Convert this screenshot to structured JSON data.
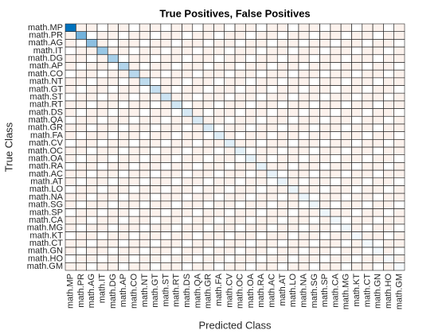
{
  "chart_data": {
    "type": "confusion",
    "title": "True Positives, False Positives",
    "xlabel": "Predicted Class",
    "ylabel": "True Class",
    "categories": [
      "math.MP",
      "math.PR",
      "math.AG",
      "math.IT",
      "math.DG",
      "math.AP",
      "math.CO",
      "math.NT",
      "math.GT",
      "math.ST",
      "math.RT",
      "math.DS",
      "math.QA",
      "math.GR",
      "math.FA",
      "math.CV",
      "math.OC",
      "math.OA",
      "math.RA",
      "math.AC",
      "math.AT",
      "math.LO",
      "math.NA",
      "math.SG",
      "math.SP",
      "math.CA",
      "math.MG",
      "math.KT",
      "math.CT",
      "math.GN",
      "math.HO",
      "math.GM"
    ],
    "diagonal_color": "#0072bd",
    "off_diagonal_color": "#d95319",
    "matrix": [
      [
        100,
        1,
        1,
        0,
        1,
        1,
        0,
        1,
        1,
        0,
        1,
        1,
        0,
        1,
        1,
        0,
        1,
        1,
        0,
        1,
        1,
        0,
        1,
        1,
        0,
        1,
        1,
        0,
        1,
        1,
        0,
        1
      ],
      [
        1,
        55,
        0,
        1,
        1,
        0,
        1,
        1,
        0,
        1,
        1,
        0,
        1,
        1,
        0,
        1,
        1,
        0,
        1,
        1,
        0,
        1,
        1,
        0,
        1,
        1,
        0,
        1,
        1,
        0,
        1,
        1
      ],
      [
        1,
        0,
        45,
        1,
        0,
        1,
        1,
        0,
        1,
        1,
        0,
        1,
        1,
        0,
        1,
        1,
        0,
        1,
        1,
        0,
        1,
        1,
        0,
        1,
        1,
        0,
        1,
        1,
        0,
        1,
        1,
        0
      ],
      [
        0,
        1,
        1,
        40,
        1,
        1,
        0,
        1,
        1,
        0,
        1,
        1,
        0,
        1,
        1,
        0,
        1,
        1,
        0,
        1,
        1,
        0,
        1,
        1,
        0,
        1,
        1,
        0,
        1,
        1,
        0,
        1
      ],
      [
        1,
        1,
        0,
        1,
        35,
        0,
        1,
        1,
        0,
        1,
        1,
        0,
        1,
        1,
        0,
        1,
        1,
        0,
        1,
        1,
        0,
        1,
        1,
        0,
        1,
        1,
        0,
        1,
        1,
        0,
        1,
        1
      ],
      [
        1,
        0,
        1,
        1,
        0,
        30,
        1,
        0,
        1,
        1,
        0,
        1,
        1,
        0,
        1,
        1,
        0,
        1,
        1,
        0,
        1,
        1,
        0,
        1,
        1,
        0,
        1,
        1,
        0,
        1,
        1,
        0
      ],
      [
        0,
        1,
        1,
        0,
        1,
        1,
        28,
        1,
        1,
        0,
        1,
        1,
        0,
        1,
        1,
        0,
        1,
        1,
        0,
        1,
        1,
        0,
        1,
        1,
        0,
        1,
        1,
        0,
        1,
        1,
        0,
        1
      ],
      [
        1,
        1,
        0,
        1,
        1,
        0,
        1,
        25,
        0,
        1,
        1,
        0,
        1,
        1,
        0,
        1,
        1,
        0,
        1,
        1,
        0,
        1,
        1,
        0,
        1,
        1,
        0,
        1,
        1,
        0,
        1,
        1
      ],
      [
        1,
        0,
        1,
        1,
        0,
        1,
        1,
        0,
        22,
        1,
        0,
        1,
        1,
        0,
        1,
        1,
        0,
        1,
        1,
        0,
        1,
        1,
        0,
        1,
        1,
        0,
        1,
        1,
        0,
        1,
        1,
        0
      ],
      [
        0,
        1,
        1,
        0,
        1,
        1,
        0,
        1,
        1,
        20,
        1,
        1,
        0,
        1,
        1,
        0,
        1,
        1,
        0,
        1,
        1,
        0,
        1,
        1,
        0,
        1,
        1,
        0,
        1,
        1,
        0,
        1
      ],
      [
        1,
        1,
        0,
        1,
        1,
        0,
        1,
        1,
        0,
        1,
        18,
        0,
        1,
        1,
        0,
        1,
        1,
        0,
        1,
        1,
        0,
        1,
        1,
        0,
        1,
        1,
        0,
        1,
        1,
        0,
        1,
        1
      ],
      [
        1,
        0,
        1,
        1,
        0,
        1,
        1,
        0,
        1,
        1,
        0,
        16,
        1,
        0,
        1,
        1,
        0,
        1,
        1,
        0,
        1,
        1,
        0,
        1,
        1,
        0,
        1,
        1,
        0,
        1,
        1,
        0
      ],
      [
        0,
        1,
        1,
        0,
        1,
        1,
        0,
        1,
        1,
        0,
        1,
        1,
        15,
        1,
        1,
        0,
        1,
        1,
        0,
        1,
        1,
        0,
        1,
        1,
        0,
        1,
        1,
        0,
        1,
        1,
        0,
        1
      ],
      [
        1,
        1,
        0,
        1,
        1,
        0,
        1,
        1,
        0,
        1,
        1,
        0,
        1,
        14,
        0,
        1,
        1,
        0,
        1,
        1,
        0,
        1,
        1,
        0,
        1,
        1,
        0,
        1,
        1,
        0,
        1,
        1
      ],
      [
        1,
        0,
        1,
        1,
        0,
        1,
        1,
        0,
        1,
        1,
        0,
        1,
        1,
        0,
        13,
        1,
        0,
        1,
        1,
        0,
        1,
        1,
        0,
        1,
        1,
        0,
        1,
        1,
        0,
        1,
        1,
        0
      ],
      [
        0,
        1,
        1,
        0,
        1,
        1,
        0,
        1,
        1,
        0,
        1,
        1,
        0,
        1,
        1,
        12,
        1,
        1,
        0,
        1,
        1,
        0,
        1,
        1,
        0,
        1,
        1,
        0,
        1,
        1,
        0,
        1
      ],
      [
        1,
        1,
        0,
        1,
        1,
        0,
        1,
        1,
        0,
        1,
        1,
        0,
        1,
        1,
        0,
        1,
        11,
        0,
        1,
        1,
        0,
        1,
        1,
        0,
        1,
        1,
        0,
        1,
        1,
        0,
        1,
        1
      ],
      [
        1,
        0,
        1,
        1,
        0,
        1,
        1,
        0,
        1,
        1,
        0,
        1,
        1,
        0,
        1,
        1,
        0,
        10,
        1,
        0,
        1,
        1,
        0,
        1,
        1,
        0,
        1,
        1,
        0,
        1,
        1,
        0
      ],
      [
        0,
        1,
        1,
        0,
        1,
        1,
        0,
        1,
        1,
        0,
        1,
        1,
        0,
        1,
        1,
        0,
        1,
        1,
        10,
        1,
        1,
        0,
        1,
        1,
        0,
        1,
        1,
        0,
        1,
        1,
        0,
        1
      ],
      [
        1,
        1,
        0,
        1,
        1,
        0,
        1,
        1,
        0,
        1,
        1,
        0,
        1,
        1,
        0,
        1,
        1,
        0,
        1,
        9,
        0,
        1,
        1,
        0,
        1,
        1,
        0,
        1,
        1,
        0,
        1,
        1
      ],
      [
        1,
        0,
        1,
        1,
        0,
        1,
        1,
        0,
        1,
        1,
        0,
        1,
        1,
        0,
        1,
        1,
        0,
        1,
        1,
        0,
        9,
        1,
        0,
        1,
        1,
        0,
        1,
        1,
        0,
        1,
        1,
        0
      ],
      [
        0,
        1,
        1,
        0,
        1,
        1,
        0,
        1,
        1,
        0,
        1,
        1,
        0,
        1,
        1,
        0,
        1,
        1,
        0,
        1,
        1,
        8,
        1,
        1,
        0,
        1,
        1,
        0,
        1,
        1,
        0,
        1
      ],
      [
        1,
        1,
        0,
        1,
        1,
        0,
        1,
        1,
        0,
        1,
        1,
        0,
        1,
        1,
        0,
        1,
        1,
        0,
        1,
        1,
        0,
        1,
        8,
        0,
        1,
        1,
        0,
        1,
        1,
        0,
        1,
        1
      ],
      [
        1,
        0,
        1,
        1,
        0,
        1,
        1,
        0,
        1,
        1,
        0,
        1,
        1,
        0,
        1,
        1,
        0,
        1,
        1,
        0,
        1,
        1,
        0,
        7,
        1,
        0,
        1,
        1,
        0,
        1,
        1,
        0
      ],
      [
        0,
        1,
        1,
        0,
        1,
        1,
        0,
        1,
        1,
        0,
        1,
        1,
        0,
        1,
        1,
        0,
        1,
        1,
        0,
        1,
        1,
        0,
        1,
        1,
        7,
        1,
        1,
        0,
        1,
        1,
        0,
        1
      ],
      [
        1,
        1,
        0,
        1,
        1,
        0,
        1,
        1,
        0,
        1,
        1,
        0,
        1,
        1,
        0,
        1,
        1,
        0,
        1,
        1,
        0,
        1,
        1,
        0,
        1,
        6,
        0,
        1,
        1,
        0,
        1,
        1
      ],
      [
        1,
        0,
        1,
        1,
        0,
        1,
        1,
        0,
        1,
        1,
        0,
        1,
        1,
        0,
        1,
        1,
        0,
        1,
        1,
        0,
        1,
        1,
        0,
        1,
        1,
        0,
        6,
        1,
        0,
        1,
        1,
        0
      ],
      [
        0,
        1,
        1,
        0,
        1,
        1,
        0,
        1,
        1,
        0,
        1,
        1,
        0,
        1,
        1,
        0,
        1,
        1,
        0,
        1,
        1,
        0,
        1,
        1,
        0,
        1,
        1,
        5,
        1,
        1,
        0,
        1
      ],
      [
        1,
        1,
        0,
        1,
        1,
        0,
        1,
        1,
        0,
        1,
        1,
        0,
        1,
        1,
        0,
        1,
        1,
        0,
        1,
        1,
        0,
        1,
        1,
        0,
        1,
        1,
        0,
        1,
        5,
        0,
        1,
        1
      ],
      [
        1,
        0,
        1,
        1,
        0,
        1,
        1,
        0,
        1,
        1,
        0,
        1,
        1,
        0,
        1,
        1,
        0,
        1,
        1,
        0,
        1,
        1,
        0,
        1,
        1,
        0,
        1,
        1,
        0,
        5,
        1,
        0
      ],
      [
        0,
        1,
        1,
        0,
        1,
        1,
        0,
        1,
        1,
        0,
        1,
        1,
        0,
        1,
        1,
        0,
        1,
        1,
        0,
        1,
        1,
        0,
        1,
        1,
        0,
        1,
        1,
        0,
        1,
        1,
        4,
        1
      ],
      [
        1,
        1,
        0,
        1,
        1,
        0,
        1,
        1,
        0,
        1,
        1,
        0,
        1,
        1,
        0,
        1,
        1,
        0,
        1,
        1,
        0,
        1,
        1,
        0,
        1,
        1,
        0,
        1,
        1,
        0,
        1,
        4
      ]
    ]
  }
}
